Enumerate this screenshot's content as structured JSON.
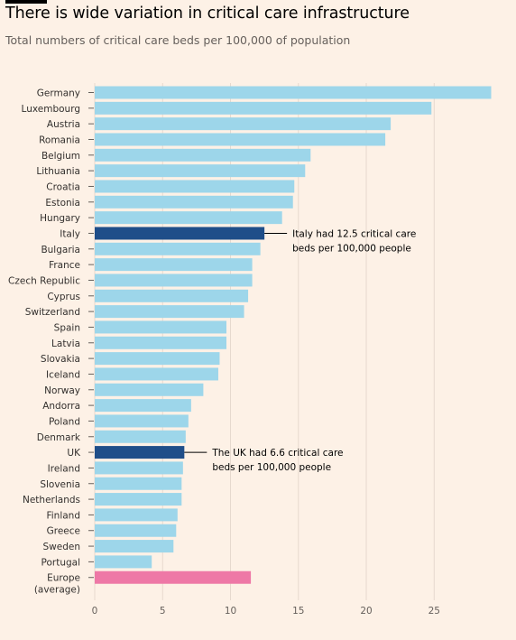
{
  "title": "There is wide variation in critical care infrastructure",
  "subtitle": "Total numbers of critical care beds per 100,000 of population",
  "colors": {
    "background": "#fdf1e6",
    "bar": "#9dd6ea",
    "highlight": "#1f4e89",
    "average": "#ee78a6",
    "grid": "#e6d9ce"
  },
  "chart_data": {
    "type": "bar",
    "orientation": "horizontal",
    "title": "There is wide variation in critical care infrastructure",
    "subtitle": "Total numbers of critical care beds per 100,000 of population",
    "xlabel": "",
    "ylabel": "",
    "xlim": [
      0,
      29.5
    ],
    "xticks": [
      0,
      5,
      10,
      15,
      20,
      25
    ],
    "grid": true,
    "categories": [
      "Germany",
      "Luxembourg",
      "Austria",
      "Romania",
      "Belgium",
      "Lithuania",
      "Croatia",
      "Estonia",
      "Hungary",
      "Italy",
      "Bulgaria",
      "France",
      "Czech Republic",
      "Cyprus",
      "Switzerland",
      "Spain",
      "Latvia",
      "Slovakia",
      "Iceland",
      "Norway",
      "Andorra",
      "Poland",
      "Denmark",
      "UK",
      "Ireland",
      "Slovenia",
      "Netherlands",
      "Finland",
      "Greece",
      "Sweden",
      "Portugal",
      "Europe (average)"
    ],
    "category_lines": {
      "Europe (average)": [
        "Europe",
        "(average)"
      ]
    },
    "values": [
      29.2,
      24.8,
      21.8,
      21.4,
      15.9,
      15.5,
      14.7,
      14.6,
      13.8,
      12.5,
      12.2,
      11.6,
      11.6,
      11.3,
      11.0,
      9.7,
      9.7,
      9.2,
      9.1,
      8.0,
      7.1,
      6.9,
      6.7,
      6.6,
      6.5,
      6.4,
      6.4,
      6.1,
      6.0,
      5.8,
      4.2,
      11.5
    ],
    "highlighted": [
      "Italy",
      "UK"
    ],
    "average_category": "Europe (average)",
    "annotations": [
      {
        "category": "Italy",
        "lines": [
          "Italy had 12.5 critical care",
          "beds per 100,000 people"
        ]
      },
      {
        "category": "UK",
        "lines": [
          "The UK had 6.6 critical care",
          "beds per 100,000 people"
        ]
      }
    ]
  }
}
